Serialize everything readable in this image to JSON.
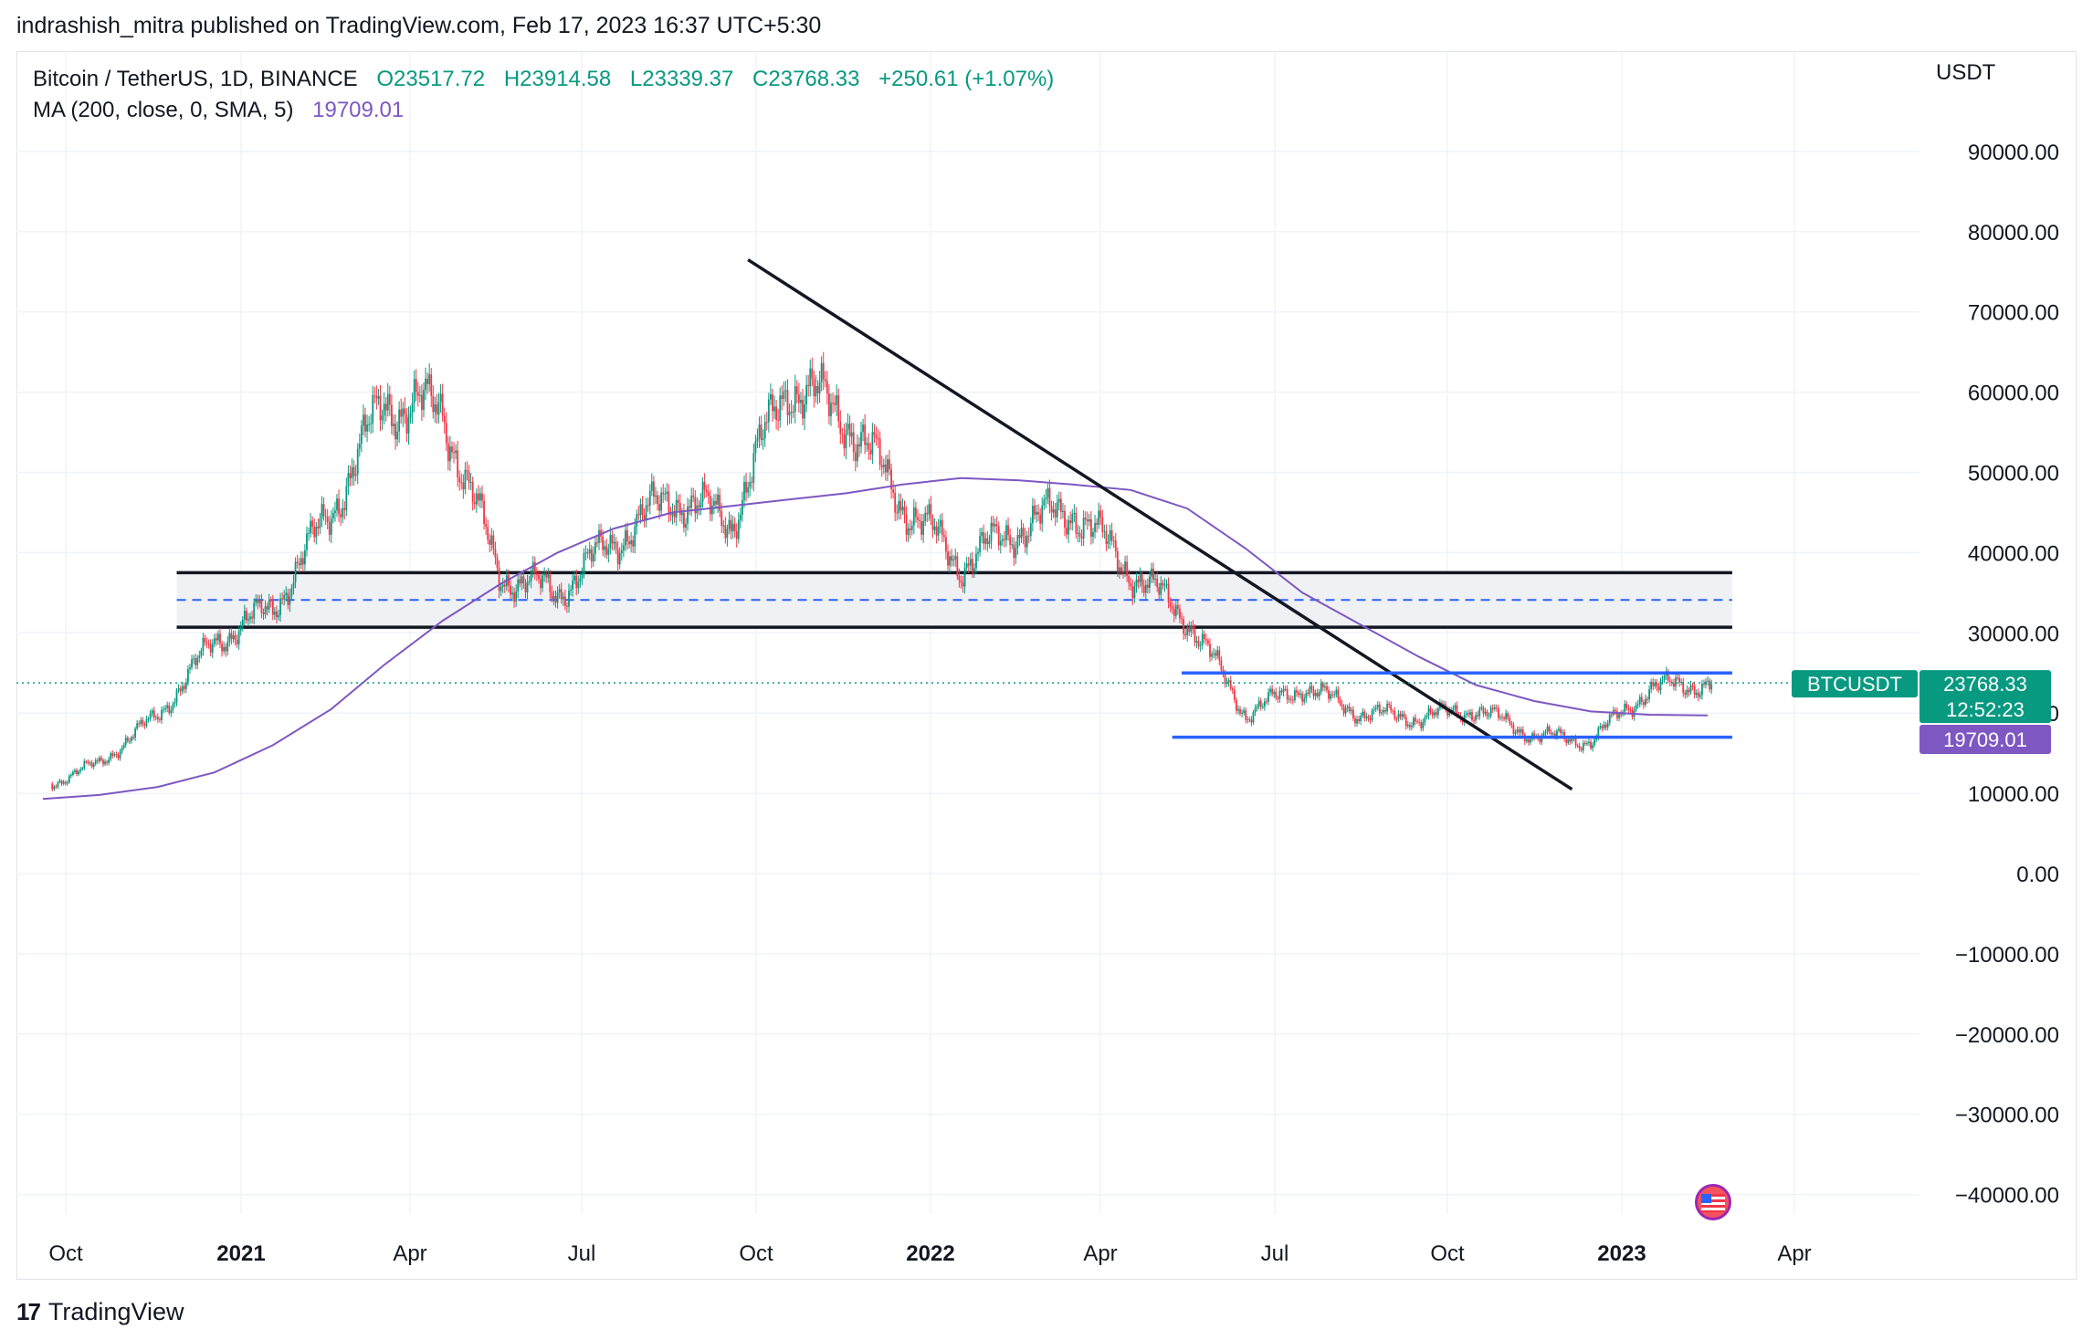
{
  "header": {
    "publish_line": "indrashish_mitra published on TradingView.com, Feb 17, 2023 16:37 UTC+5:30"
  },
  "legend": {
    "symbol": "Bitcoin / TetherUS, 1D, BINANCE",
    "open": "O23517.72",
    "high": "H23914.58",
    "low": "L23339.37",
    "close": "C23768.33",
    "change": "+250.61 (+1.07%)",
    "ma_label": "MA (200, close, 0, SMA, 5)",
    "ma_value": "19709.01"
  },
  "price_axis": {
    "unit": "USDT",
    "ticks": [
      "90000.00",
      "80000.00",
      "70000.00",
      "60000.00",
      "50000.00",
      "40000.00",
      "30000.00",
      "20000.00",
      "10000.00",
      "0.00",
      "−10000.00",
      "−20000.00",
      "−30000.00",
      "−40000.00"
    ],
    "last_price_label": "BTCUSDT",
    "last_price": "23768.33",
    "countdown": "12:52:23",
    "ma_price": "19709.01"
  },
  "time_axis": {
    "labels": [
      "Oct",
      "2021",
      "Apr",
      "Jul",
      "Oct",
      "2022",
      "Apr",
      "Jul",
      "Oct",
      "2023",
      "Apr"
    ],
    "bold": [
      false,
      true,
      false,
      false,
      false,
      true,
      false,
      false,
      false,
      true,
      false
    ]
  },
  "colors": {
    "up": "#089981",
    "down": "#f23645",
    "ma": "#7e57c2",
    "trendline": "#131722",
    "support": "#2962ff",
    "zone_fill": "#f0f1f5"
  },
  "chart_data": {
    "type": "candlestick",
    "title": "Bitcoin / TetherUS, 1D, BINANCE",
    "ylabel": "USDT",
    "ylim": [
      -45000,
      96000
    ],
    "x_period": [
      "2020-09",
      "2023-04"
    ],
    "series": [
      {
        "name": "BTCUSDT",
        "description": "daily candles",
        "monthly_close": [
          [
            "2020-09",
            10700
          ],
          [
            "2020-10",
            13800
          ],
          [
            "2020-11",
            19700
          ],
          [
            "2020-12",
            29000
          ],
          [
            "2021-01",
            33100
          ],
          [
            "2021-02",
            45200
          ],
          [
            "2021-03",
            58800
          ],
          [
            "2021-04",
            57700
          ],
          [
            "2021-05",
            37300
          ],
          [
            "2021-06",
            35000
          ],
          [
            "2021-07",
            41500
          ],
          [
            "2021-08",
            47100
          ],
          [
            "2021-09",
            43800
          ],
          [
            "2021-10",
            61300
          ],
          [
            "2021-11",
            57000
          ],
          [
            "2021-12",
            46200
          ],
          [
            "2022-01",
            38500
          ],
          [
            "2022-02",
            43200
          ],
          [
            "2022-03",
            45500
          ],
          [
            "2022-04",
            37700
          ],
          [
            "2022-05",
            31800
          ],
          [
            "2022-06",
            19900
          ],
          [
            "2022-07",
            23300
          ],
          [
            "2022-08",
            20000
          ],
          [
            "2022-09",
            19400
          ],
          [
            "2022-10",
            20500
          ],
          [
            "2022-11",
            17200
          ],
          [
            "2022-12",
            16500
          ],
          [
            "2023-01",
            23100
          ],
          [
            "2023-02",
            23768
          ]
        ]
      },
      {
        "name": "MA (200, close, 0, SMA, 5)",
        "monthly_value": [
          [
            "2020-09",
            9300
          ],
          [
            "2020-10",
            9800
          ],
          [
            "2020-11",
            10800
          ],
          [
            "2020-12",
            12600
          ],
          [
            "2021-01",
            16000
          ],
          [
            "2021-02",
            20500
          ],
          [
            "2021-03",
            26000
          ],
          [
            "2021-04",
            31500
          ],
          [
            "2021-05",
            36000
          ],
          [
            "2021-06",
            40000
          ],
          [
            "2021-07",
            43000
          ],
          [
            "2021-08",
            45000
          ],
          [
            "2021-09",
            45800
          ],
          [
            "2021-10",
            46600
          ],
          [
            "2021-11",
            47400
          ],
          [
            "2021-12",
            48500
          ],
          [
            "2022-01",
            49300
          ],
          [
            "2022-02",
            49000
          ],
          [
            "2022-03",
            48500
          ],
          [
            "2022-04",
            47800
          ],
          [
            "2022-05",
            45500
          ],
          [
            "2022-06",
            40500
          ],
          [
            "2022-07",
            35000
          ],
          [
            "2022-08",
            31000
          ],
          [
            "2022-09",
            27000
          ],
          [
            "2022-10",
            23500
          ],
          [
            "2022-11",
            21500
          ],
          [
            "2022-12",
            20200
          ],
          [
            "2023-01",
            19800
          ],
          [
            "2023-02",
            19709
          ]
        ]
      }
    ],
    "annotations": {
      "resistance_zone": {
        "top": 37500,
        "bottom": 30700,
        "mid": 34100,
        "from": "2020-11-25",
        "to": "2023-02-28"
      },
      "range_top": {
        "value": 25000,
        "from": "2022-05-12",
        "to": "2023-02-28"
      },
      "range_bottom": {
        "value": 17000,
        "from": "2022-05-07",
        "to": "2023-02-28"
      },
      "downtrend_line": {
        "from": [
          "2021-09-24",
          76500
        ],
        "to": [
          "2022-12-05",
          10500
        ]
      },
      "last_price_line": 23768.33
    }
  }
}
